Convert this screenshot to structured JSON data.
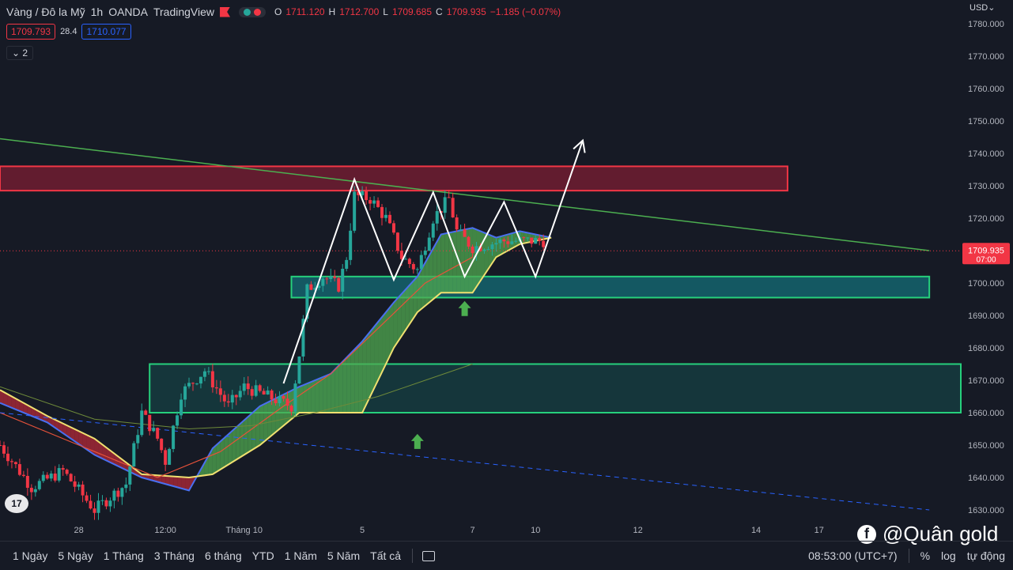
{
  "header": {
    "symbol_title": "Vàng / Đô la Mỹ",
    "interval": "1h",
    "broker": "OANDA",
    "platform": "TradingView",
    "ohlc": {
      "o_label": "O",
      "o": "1711.120",
      "h_label": "H",
      "h": "1712.700",
      "l_label": "L",
      "l": "1709.685",
      "c_label": "C",
      "c": "1709.935",
      "change": "−1.185 (−0.07%)"
    },
    "sell_price": "1709.793",
    "spread": "28.4",
    "buy_price": "1710.077",
    "indicators_count": "2"
  },
  "price_axis": {
    "currency": "USD",
    "last_price": "1709.935",
    "countdown": "07:00"
  },
  "bottom_bar": {
    "ranges": [
      "1 Ngày",
      "5 Ngày",
      "1 Tháng",
      "3 Tháng",
      "6 tháng",
      "YTD",
      "1 Năm",
      "5 Năm",
      "Tất cả"
    ],
    "time": "08:53:00 (UTC+7)",
    "percent": "%",
    "log": "log",
    "auto": "tự động"
  },
  "watermark": "@Quân gold",
  "logo_text": "17",
  "colors": {
    "up": "#26a69a",
    "down": "#f23645",
    "background": "#161a25",
    "resistance_zone": "#f23645",
    "support_zone": "#26d07c"
  },
  "chart_data": {
    "type": "candlestick",
    "title": "",
    "y_axis": {
      "ticks": [
        1630,
        1640,
        1650,
        1660,
        1670,
        1680,
        1690,
        1700,
        1710,
        1720,
        1730,
        1740,
        1750,
        1760,
        1770,
        1780
      ],
      "tick_labels": [
        "1630.000",
        "1640.000",
        "1650.000",
        "1660.000",
        "1670.000",
        "1680.000",
        "1690.000",
        "1700.000",
        "1710.000",
        "1720.000",
        "1730.000",
        "1740.000",
        "1750.000",
        "1760.000",
        "1770.000",
        "1780.000"
      ],
      "range": [
        1628,
        1783
      ]
    },
    "x_axis": {
      "tick_labels": [
        "28",
        "12:00",
        "Tháng 10",
        "5",
        "7",
        "10",
        "12",
        "14",
        "17"
      ],
      "tick_index": [
        10,
        21,
        31,
        46,
        60,
        68,
        81,
        96,
        104
      ],
      "index_range": [
        0,
        122
      ]
    },
    "price_path": [
      [
        0,
        1650
      ],
      [
        4,
        1637
      ],
      [
        8,
        1642
      ],
      [
        12,
        1630
      ],
      [
        16,
        1638
      ],
      [
        18,
        1660
      ],
      [
        20,
        1652
      ],
      [
        21,
        1645
      ],
      [
        23,
        1666
      ],
      [
        26,
        1673
      ],
      [
        29,
        1662
      ],
      [
        31,
        1668
      ],
      [
        34,
        1665
      ],
      [
        37,
        1662
      ],
      [
        38,
        1678
      ],
      [
        39,
        1698
      ],
      [
        41,
        1702
      ],
      [
        43,
        1699
      ],
      [
        44,
        1708
      ],
      [
        45,
        1727
      ],
      [
        47,
        1726
      ],
      [
        49,
        1720
      ],
      [
        51,
        1708
      ],
      [
        53,
        1704
      ],
      [
        55,
        1720
      ],
      [
        57,
        1726
      ],
      [
        58,
        1716
      ],
      [
        60,
        1711
      ],
      [
        62,
        1712
      ],
      [
        64,
        1713
      ],
      [
        66,
        1713
      ],
      [
        69,
        1713
      ]
    ],
    "cloud_upper": [
      [
        0,
        1663
      ],
      [
        6,
        1657
      ],
      [
        12,
        1647
      ],
      [
        18,
        1640
      ],
      [
        24,
        1636
      ],
      [
        27,
        1649
      ],
      [
        33,
        1662
      ],
      [
        38,
        1668
      ],
      [
        42,
        1672
      ],
      [
        46,
        1682
      ],
      [
        50,
        1694
      ],
      [
        53,
        1702
      ],
      [
        56,
        1715
      ],
      [
        60,
        1717
      ],
      [
        63,
        1714
      ],
      [
        66,
        1716
      ],
      [
        70,
        1714
      ]
    ],
    "cloud_lower": [
      [
        0,
        1667
      ],
      [
        6,
        1659
      ],
      [
        12,
        1652
      ],
      [
        18,
        1641
      ],
      [
        24,
        1640
      ],
      [
        27,
        1641
      ],
      [
        33,
        1650
      ],
      [
        38,
        1660
      ],
      [
        42,
        1660
      ],
      [
        46,
        1660
      ],
      [
        50,
        1680
      ],
      [
        53,
        1691
      ],
      [
        56,
        1697
      ],
      [
        60,
        1697
      ],
      [
        63,
        1708
      ],
      [
        66,
        1712
      ],
      [
        70,
        1714
      ]
    ],
    "ma_fast": [
      [
        0,
        1660
      ],
      [
        10,
        1650
      ],
      [
        20,
        1640
      ],
      [
        28,
        1648
      ],
      [
        36,
        1662
      ],
      [
        42,
        1672
      ],
      [
        48,
        1686
      ],
      [
        54,
        1700
      ],
      [
        60,
        1708
      ]
    ],
    "ma_slow": [
      [
        0,
        1668
      ],
      [
        12,
        1658
      ],
      [
        24,
        1655
      ],
      [
        32,
        1656
      ],
      [
        40,
        1660
      ],
      [
        48,
        1665
      ],
      [
        54,
        1670
      ],
      [
        60,
        1675
      ]
    ],
    "resistance_zone": {
      "from": 1728.5,
      "to": 1736,
      "x_start": 0,
      "x_end": 100
    },
    "support_zone_1": {
      "from": 1695.5,
      "to": 1702,
      "x_start": 37,
      "x_end": 118
    },
    "support_zone_2": {
      "from": 1660,
      "to": 1675,
      "x_start": 19,
      "x_end": 122
    },
    "trendline_resistance": {
      "start": [
        0,
        1744.5
      ],
      "end": [
        118,
        1710
      ]
    },
    "trendline_support": {
      "start": [
        0,
        1660
      ],
      "end": [
        118,
        1630
      ]
    },
    "projection_path": [
      [
        36,
        1669
      ],
      [
        45,
        1732
      ],
      [
        50,
        1701
      ],
      [
        55,
        1728
      ],
      [
        59,
        1702
      ],
      [
        64,
        1725
      ],
      [
        68,
        1702
      ],
      [
        74,
        1744
      ]
    ],
    "arrows_up": [
      [
        59,
        1692
      ],
      [
        53,
        1651
      ]
    ],
    "last_price": 1709.935
  }
}
